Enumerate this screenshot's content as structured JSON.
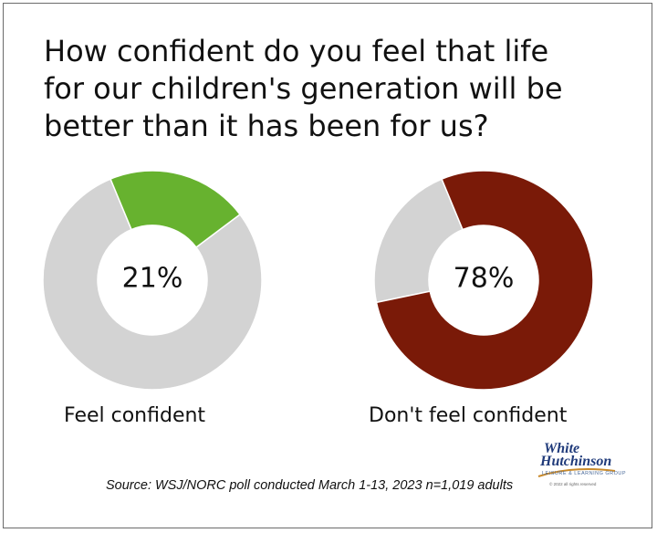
{
  "title_lines": [
    "How confident do you feel that life",
    "for our children's generation will be",
    "better than it has been for us?"
  ],
  "chart_data": [
    {
      "type": "pie",
      "title": "How confident do you feel that life for our children's generation will be better than it has been for us?",
      "category": "Feel confident",
      "center_label": "21%",
      "values": [
        21,
        79
      ],
      "highlight_color": "#67b22f",
      "rest_color": "#d3d3d3"
    },
    {
      "type": "pie",
      "title": "How confident do you feel that life for our children's generation will be better than it has been for us?",
      "category": "Don't feel confident",
      "center_label": "78%",
      "values": [
        78,
        22
      ],
      "highlight_color": "#7a1a08",
      "rest_color": "#d3d3d3"
    }
  ],
  "source": "Source: WSJ/NORC poll conducted March 1-13, 2023 n=1,019 adults",
  "logo": {
    "line1": "White",
    "line2": "Hutchinson",
    "tagline": "LEISURE & LEARNING GROUP",
    "copyright": "© 2022 all rights reserved"
  }
}
